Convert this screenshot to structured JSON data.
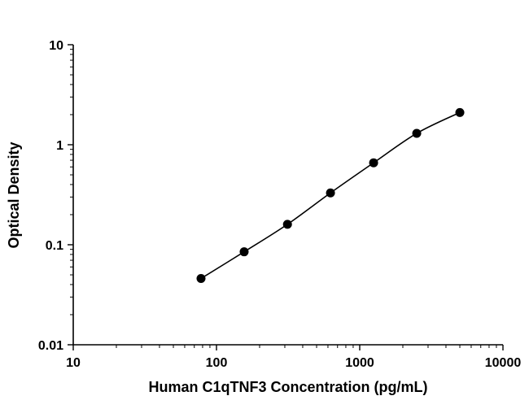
{
  "chart_data": {
    "type": "scatter",
    "title": "",
    "xlabel": "Human C1qTNF3 Concentration (pg/mL)",
    "ylabel": "Optical Density",
    "xscale": "log",
    "yscale": "log",
    "xlim": [
      10,
      10000
    ],
    "ylim": [
      0.01,
      10
    ],
    "grid": false,
    "legend": "none",
    "x": [
      78,
      156,
      313,
      625,
      1250,
      2500,
      5000
    ],
    "y": [
      0.046,
      0.085,
      0.16,
      0.33,
      0.66,
      1.3,
      2.1
    ],
    "x_ticks": [
      {
        "value": 10,
        "label": "10"
      },
      {
        "value": 100,
        "label": "100"
      },
      {
        "value": 1000,
        "label": "1000"
      },
      {
        "value": 10000,
        "label": "10000"
      }
    ],
    "y_ticks": [
      {
        "value": 0.01,
        "label": "0.01"
      },
      {
        "value": 0.1,
        "label": "0.1"
      },
      {
        "value": 1,
        "label": "1"
      },
      {
        "value": 10,
        "label": "10"
      }
    ],
    "minor_ticks": true,
    "marker_color": "#000000",
    "line_color": "#000000",
    "axis_color": "#000000"
  }
}
